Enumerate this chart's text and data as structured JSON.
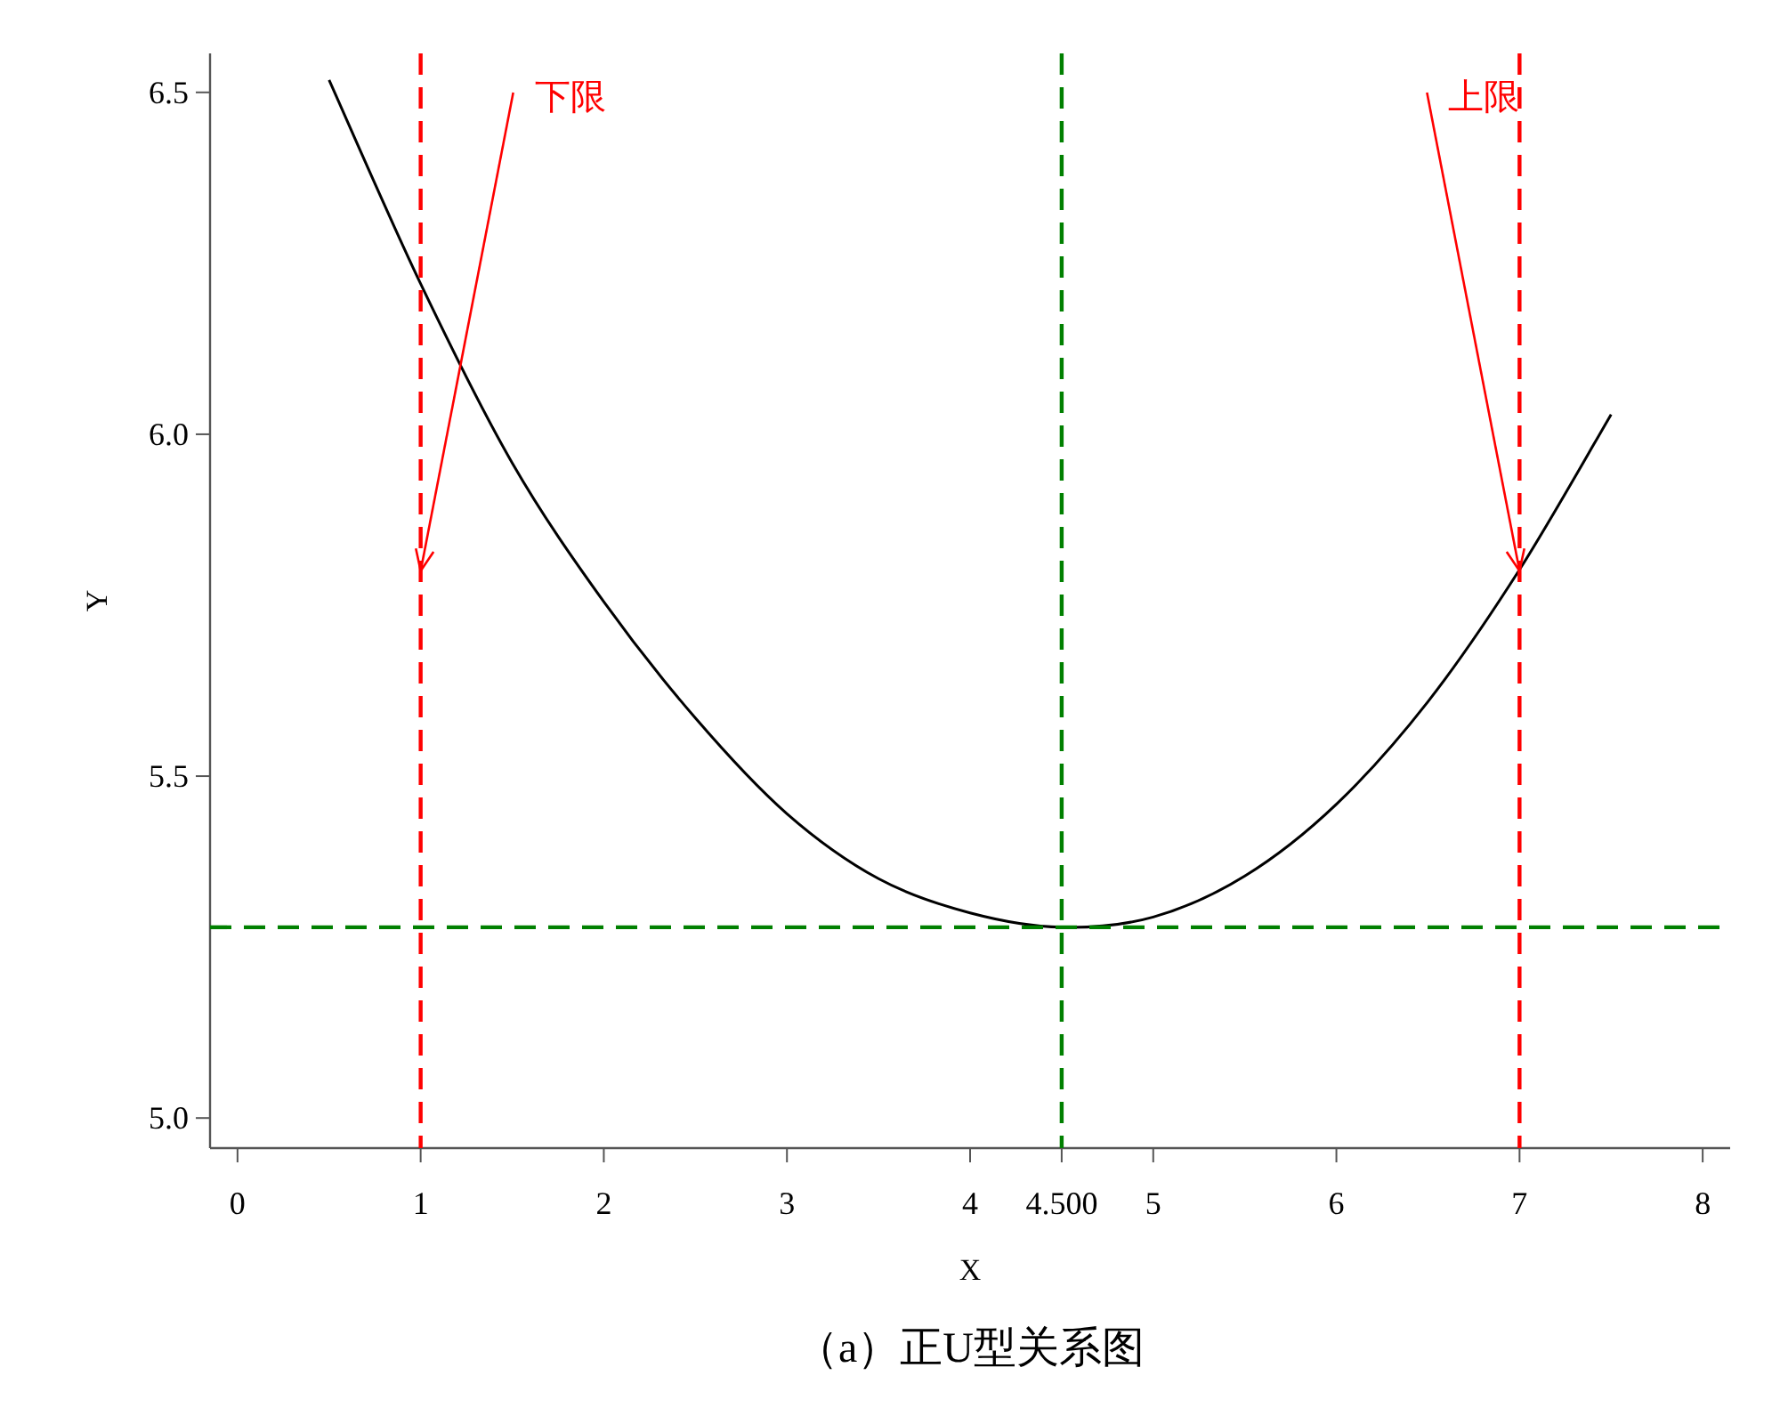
{
  "chart_data": {
    "type": "line",
    "title": "（a）正U型关系图",
    "xlabel": "X",
    "ylabel": "Y",
    "x": [
      0.5,
      1,
      1.5,
      2,
      2.5,
      3,
      3.5,
      4,
      4.5,
      5,
      5.5,
      6,
      6.5,
      7,
      7.5
    ],
    "series": [
      {
        "color": "#000000",
        "values": [
          6.518,
          6.22,
          5.958,
          5.755,
          5.585,
          5.445,
          5.35,
          5.3,
          5.279,
          5.294,
          5.354,
          5.459,
          5.609,
          5.802,
          6.029
        ]
      }
    ],
    "xlim": [
      -0.15,
      8.15
    ],
    "ylim": [
      4.956,
      6.557
    ],
    "xticks": [
      0,
      1,
      2,
      3,
      4,
      {
        "value": 4.5,
        "label": "4.500"
      },
      5,
      6,
      7,
      8
    ],
    "yticks": [
      {
        "value": 5.0,
        "label": "5.0"
      },
      5.5,
      {
        "value": 6.0,
        "label": "6.0"
      },
      6.5
    ],
    "ref_lines": [
      {
        "axis": "x",
        "value": 1,
        "color": "#ff0000",
        "line_style": "dashed"
      },
      {
        "axis": "x",
        "value": 7,
        "color": "#ff0000",
        "line_style": "dashed"
      },
      {
        "axis": "x",
        "value": 4.5,
        "color": "#008000",
        "line_style": "dashed"
      },
      {
        "axis": "y",
        "value": 5.279,
        "color": "#008000",
        "line_style": "dashed"
      }
    ],
    "annotations": [
      {
        "text": "下限",
        "x": 1,
        "y": 5.8
      },
      {
        "text": "上限",
        "x": 7,
        "y": 5.8
      }
    ],
    "grid": false,
    "marker": "none",
    "line_style": "solid"
  }
}
